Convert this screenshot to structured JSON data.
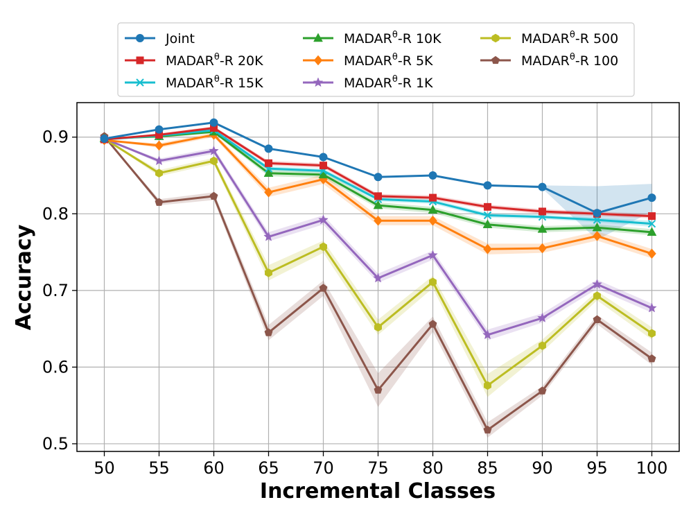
{
  "chart_data": {
    "type": "line",
    "title": "",
    "xlabel": "Incremental Classes",
    "ylabel": "Accuracy",
    "x": [
      50,
      55,
      60,
      65,
      70,
      75,
      80,
      85,
      90,
      95,
      100
    ],
    "xlim": [
      47.5,
      102.5
    ],
    "ylim": [
      0.49,
      0.945
    ],
    "yticks": [
      0.5,
      0.6,
      0.7,
      0.8,
      0.9
    ],
    "ytick_labels": [
      "0.5",
      "0.6",
      "0.7",
      "0.8",
      "0.9"
    ],
    "xtick_labels": [
      "50",
      "55",
      "60",
      "65",
      "70",
      "75",
      "80",
      "85",
      "90",
      "95",
      "100"
    ],
    "grid": true,
    "legend_position": "top",
    "series": [
      {
        "name": "Joint",
        "label_prefix": "Joint",
        "label_suffix": "",
        "color": "#1f77b4",
        "marker": "circle",
        "values": [
          0.898,
          0.91,
          0.919,
          0.885,
          0.874,
          0.848,
          0.85,
          0.837,
          0.835,
          0.801,
          0.821
        ],
        "band": [
          0,
          0,
          0,
          0,
          0,
          0,
          0,
          0,
          0.002,
          0.035,
          0.018
        ]
      },
      {
        "name": "MADARθ-R 20K",
        "label_prefix": "MADAR",
        "label_suffix": "-R 20K",
        "color": "#d62728",
        "marker": "square",
        "values": [
          0.897,
          0.903,
          0.912,
          0.866,
          0.863,
          0.823,
          0.821,
          0.809,
          0.803,
          0.8,
          0.797
        ],
        "band": [
          0,
          0.002,
          0.002,
          0.003,
          0.003,
          0.003,
          0.003,
          0.003,
          0.003,
          0.003,
          0.003
        ]
      },
      {
        "name": "MADARθ-R 15K",
        "label_prefix": "MADAR",
        "label_suffix": "-R 15K",
        "color": "#17becf",
        "marker": "x",
        "values": [
          0.897,
          0.902,
          0.909,
          0.859,
          0.856,
          0.819,
          0.816,
          0.798,
          0.796,
          0.792,
          0.787
        ],
        "band": [
          0,
          0.002,
          0.002,
          0.003,
          0.003,
          0.003,
          0.003,
          0.003,
          0.003,
          0.003,
          0.004
        ]
      },
      {
        "name": "MADARθ-R 10K",
        "label_prefix": "MADAR",
        "label_suffix": "-R 10K",
        "color": "#2ca02c",
        "marker": "triangle",
        "values": [
          0.898,
          0.901,
          0.907,
          0.853,
          0.851,
          0.811,
          0.805,
          0.786,
          0.78,
          0.782,
          0.776
        ],
        "band": [
          0,
          0.002,
          0.002,
          0.004,
          0.004,
          0.004,
          0.004,
          0.004,
          0.004,
          0.004,
          0.004
        ]
      },
      {
        "name": "MADARθ-R 5K",
        "label_prefix": "MADAR",
        "label_suffix": "-R 5K",
        "color": "#ff7f0e",
        "marker": "diamond",
        "values": [
          0.896,
          0.889,
          0.903,
          0.828,
          0.845,
          0.791,
          0.791,
          0.754,
          0.755,
          0.771,
          0.748
        ],
        "band": [
          0,
          0.003,
          0.003,
          0.006,
          0.006,
          0.006,
          0.006,
          0.007,
          0.006,
          0.006,
          0.006
        ]
      },
      {
        "name": "MADARθ-R 1K",
        "label_prefix": "MADAR",
        "label_suffix": "-R 1K",
        "color": "#9467bd",
        "marker": "star",
        "values": [
          0.898,
          0.869,
          0.882,
          0.77,
          0.792,
          0.716,
          0.746,
          0.642,
          0.664,
          0.708,
          0.677
        ],
        "band": [
          0,
          0.003,
          0.004,
          0.006,
          0.006,
          0.006,
          0.006,
          0.007,
          0.006,
          0.006,
          0.006
        ]
      },
      {
        "name": "MADARθ-R 500",
        "label_prefix": "MADAR",
        "label_suffix": "-R 500",
        "color": "#bcbd22",
        "marker": "hexagon",
        "values": [
          0.898,
          0.853,
          0.869,
          0.723,
          0.757,
          0.652,
          0.711,
          0.576,
          0.628,
          0.693,
          0.644
        ],
        "band": [
          0,
          0.004,
          0.004,
          0.01,
          0.008,
          0.01,
          0.008,
          0.015,
          0.008,
          0.006,
          0.008
        ]
      },
      {
        "name": "MADARθ-R 100",
        "label_prefix": "MADAR",
        "label_suffix": "-R 100",
        "color": "#8c564b",
        "marker": "pentagon",
        "values": [
          0.901,
          0.815,
          0.823,
          0.645,
          0.703,
          0.57,
          0.656,
          0.518,
          0.569,
          0.662,
          0.611
        ],
        "band": [
          0,
          0.004,
          0.005,
          0.01,
          0.01,
          0.022,
          0.01,
          0.01,
          0.006,
          0.006,
          0.008
        ]
      }
    ]
  }
}
